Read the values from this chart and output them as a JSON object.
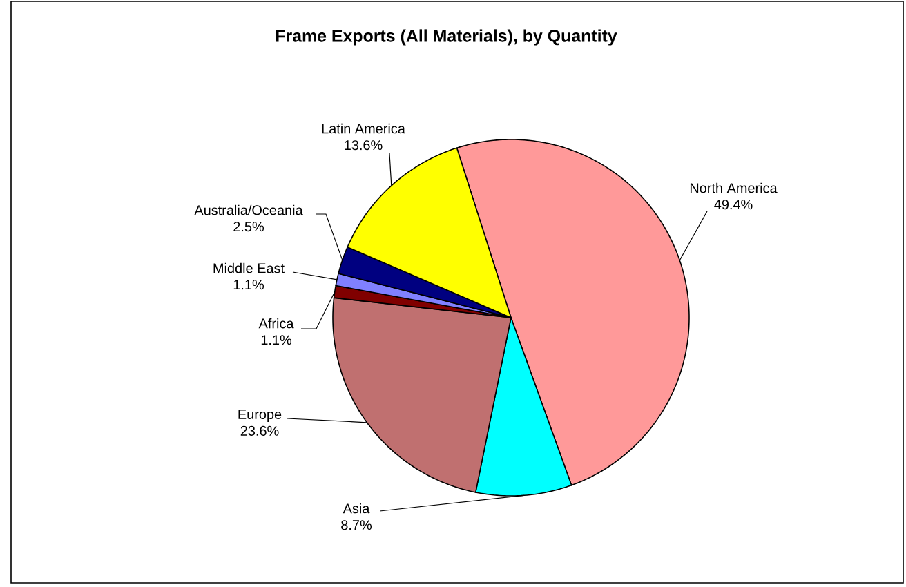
{
  "chart_data": {
    "type": "pie",
    "title": "Frame Exports (All Materials), by Quantity",
    "categories": [
      "North America",
      "Asia",
      "Europe",
      "Africa",
      "Middle East",
      "Australia/Oceania",
      "Latin America"
    ],
    "values": [
      49.4,
      8.7,
      23.6,
      1.1,
      1.1,
      2.5,
      13.6
    ],
    "colors": [
      "#ff9999",
      "#00ffff",
      "#c07070",
      "#800000",
      "#8080ff",
      "#000080",
      "#ffff00"
    ],
    "value_labels": [
      "49.4%",
      "8.7%",
      "23.6%",
      "1.1%",
      "1.1%",
      "2.5%",
      "13.6%"
    ]
  }
}
